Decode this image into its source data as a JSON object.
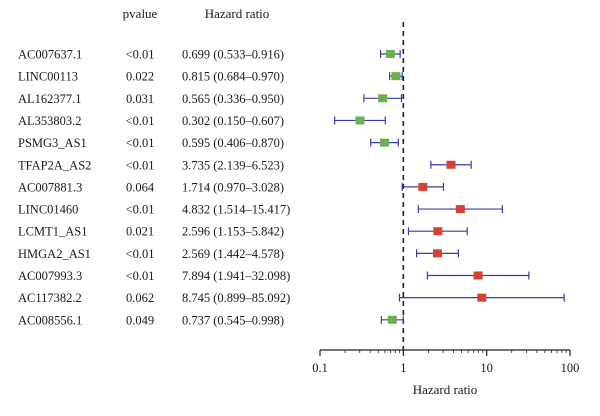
{
  "chart_data": {
    "type": "forest",
    "headers": {
      "pvalue": "pvalue",
      "hr": "Hazard ratio"
    },
    "xlabel": "Hazard ratio",
    "xscale": "log",
    "xlim": [
      0.1,
      100
    ],
    "xticks": [
      "0.1",
      "1",
      "10",
      "100"
    ],
    "reference_line": 1,
    "colors": {
      "protective": "#6ab04c",
      "risk": "#d9412f",
      "ci": "#3a3ab0",
      "axis": "#222222"
    },
    "rows": [
      {
        "gene": "AC007637.1",
        "pvalue": "<0.01",
        "hr_text": "0.699 (0.533–0.916)",
        "hr": 0.699,
        "lower": 0.533,
        "upper": 0.916,
        "group": "protective"
      },
      {
        "gene": "LINC00113",
        "pvalue": "0.022",
        "hr_text": "0.815 (0.684–0.970)",
        "hr": 0.815,
        "lower": 0.684,
        "upper": 0.97,
        "group": "protective"
      },
      {
        "gene": "AL162377.1",
        "pvalue": "0.031",
        "hr_text": "0.565 (0.336–0.950)",
        "hr": 0.565,
        "lower": 0.336,
        "upper": 0.95,
        "group": "protective"
      },
      {
        "gene": "AL353803.2",
        "pvalue": "<0.01",
        "hr_text": "0.302 (0.150–0.607)",
        "hr": 0.302,
        "lower": 0.15,
        "upper": 0.607,
        "group": "protective"
      },
      {
        "gene": "PSMG3_AS1",
        "pvalue": "<0.01",
        "hr_text": "0.595 (0.406–0.870)",
        "hr": 0.595,
        "lower": 0.406,
        "upper": 0.87,
        "group": "protective"
      },
      {
        "gene": "TFAP2A_AS2",
        "pvalue": "<0.01",
        "hr_text": "3.735 (2.139–6.523)",
        "hr": 3.735,
        "lower": 2.139,
        "upper": 6.523,
        "group": "risk"
      },
      {
        "gene": "AC007881.3",
        "pvalue": "0.064",
        "hr_text": "1.714 (0.970–3.028)",
        "hr": 1.714,
        "lower": 0.97,
        "upper": 3.028,
        "group": "risk"
      },
      {
        "gene": "LINC01460",
        "pvalue": "<0.01",
        "hr_text": "4.832 (1.514–15.417)",
        "hr": 4.832,
        "lower": 1.514,
        "upper": 15.417,
        "group": "risk"
      },
      {
        "gene": "LCMT1_AS1",
        "pvalue": "0.021",
        "hr_text": "2.596 (1.153–5.842)",
        "hr": 2.596,
        "lower": 1.153,
        "upper": 5.842,
        "group": "risk"
      },
      {
        "gene": "HMGA2_AS1",
        "pvalue": "<0.01",
        "hr_text": "2.569 (1.442–4.578)",
        "hr": 2.569,
        "lower": 1.442,
        "upper": 4.578,
        "group": "risk"
      },
      {
        "gene": "AC007993.3",
        "pvalue": "<0.01",
        "hr_text": "7.894 (1.941–32.098)",
        "hr": 7.894,
        "lower": 1.941,
        "upper": 32.098,
        "group": "risk"
      },
      {
        "gene": "AC117382.2",
        "pvalue": "0.062",
        "hr_text": "8.745 (0.899–85.092)",
        "hr": 8.745,
        "lower": 0.899,
        "upper": 85.092,
        "group": "risk"
      },
      {
        "gene": "AC008556.1",
        "pvalue": "0.049",
        "hr_text": "0.737 (0.545–0.998)",
        "hr": 0.737,
        "lower": 0.545,
        "upper": 0.998,
        "group": "protective"
      }
    ]
  }
}
